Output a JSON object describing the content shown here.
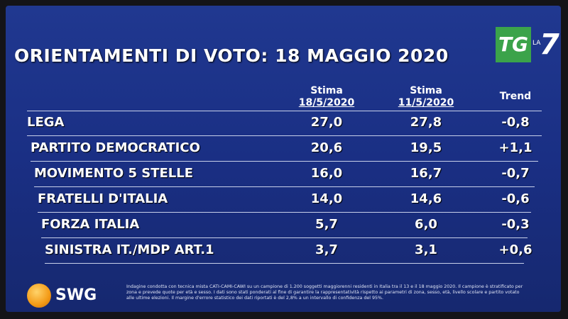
{
  "header": {
    "title": "ORIENTAMENTI DI VOTO: 18 MAGGIO 2020",
    "logo": {
      "main": "TG",
      "small": "LA",
      "number": "7"
    }
  },
  "table": {
    "columns": [
      [
        "Stima",
        "18/5/2020"
      ],
      [
        "Stima",
        "11/5/2020"
      ],
      [
        "Trend"
      ]
    ],
    "rows": [
      [
        "LEGA",
        "27,0",
        "27,8",
        "-0,8"
      ],
      [
        "PARTITO DEMOCRATICO",
        "20,6",
        "19,5",
        "+1,1"
      ],
      [
        "MOVIMENTO 5 STELLE",
        "16,0",
        "16,7",
        "-0,7"
      ],
      [
        "FRATELLI D'ITALIA",
        "14,0",
        "14,6",
        "-0,6"
      ],
      [
        "FORZA ITALIA",
        "5,7",
        "6,0",
        "-0,3"
      ],
      [
        "SINISTRA IT./MDP ART.1",
        "3,7",
        "3,1",
        "+0,6"
      ]
    ]
  },
  "footer": {
    "brand": "SWG",
    "note": "Indagine condotta con tecnica mista CATI-CAMI-CAWI su un campione di 1.200 soggetti maggiorenni residenti in Italia tra il 13 e il 18 maggio 2020. Il campione è stratificato per zona e prevede quote per età e sesso. I dati sono stati ponderati al fine di garantire la rappresentatività rispetto ai parametri di zona, sesso, età, livello scolare e partito votato alle ultime elezioni. Il margine d'errore statistico dei dati riportati è del 2,8% a un intervallo di confidenza del 95%."
  }
}
